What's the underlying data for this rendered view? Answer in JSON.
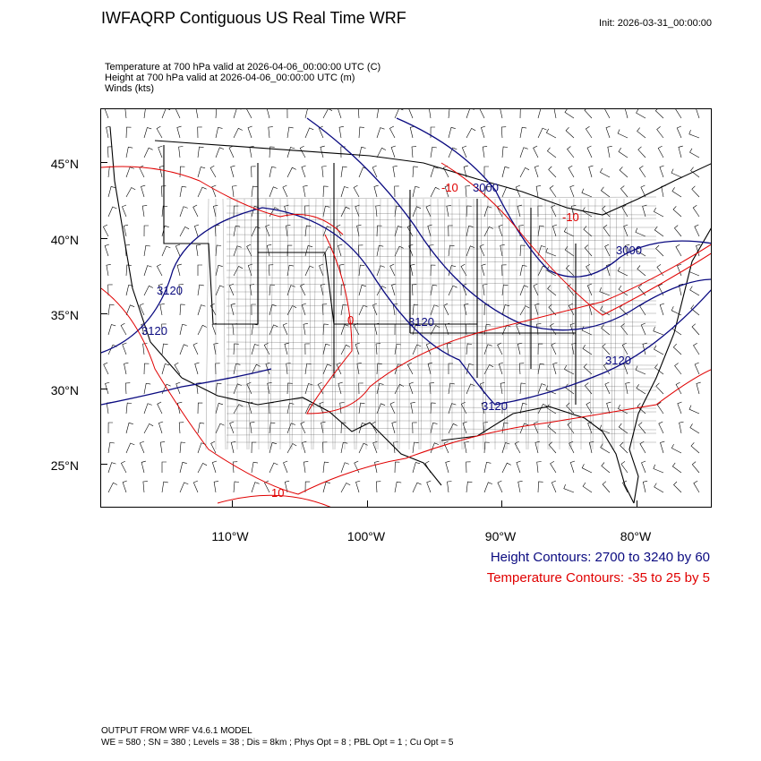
{
  "header": {
    "title": "IWFAQRP Contiguous US Real Time WRF",
    "init": "Init: 2026-03-31_00:00:00"
  },
  "fields": {
    "line1": "Temperature at 700 hPa valid at 2026-04-06_00:00:00 UTC   (C)",
    "line2": "Height at 700 hPa valid at 2026-04-06_00:00:00 UTC   (m)",
    "line3": "Winds   (kts)"
  },
  "map": {
    "lat_labels": [
      "45°N",
      "40°N",
      "35°N",
      "30°N",
      "25°N"
    ],
    "lon_labels": [
      "110°W",
      "100°W",
      "90°W",
      "80°W"
    ],
    "contour_labels": {
      "height": [
        "3120",
        "3120",
        "3120",
        "3120",
        "3120",
        "3000",
        "3000"
      ],
      "temp": [
        "-10",
        "-10",
        "0",
        "10"
      ]
    },
    "colors": {
      "height": "#0a0a80",
      "temp": "#e00000",
      "boundary": "#000000"
    }
  },
  "legend": {
    "height": "Height Contours: 2700 to 3240 by 60",
    "temp": "Temperature Contours: -35 to 25 by 5"
  },
  "footer": {
    "line1": "OUTPUT FROM WRF V4.6.1 MODEL",
    "line2": "WE = 580 ; SN = 380 ; Levels = 38 ; Dis = 8km ; Phys Opt = 8 ; PBL Opt = 1 ; Cu Opt = 5"
  }
}
